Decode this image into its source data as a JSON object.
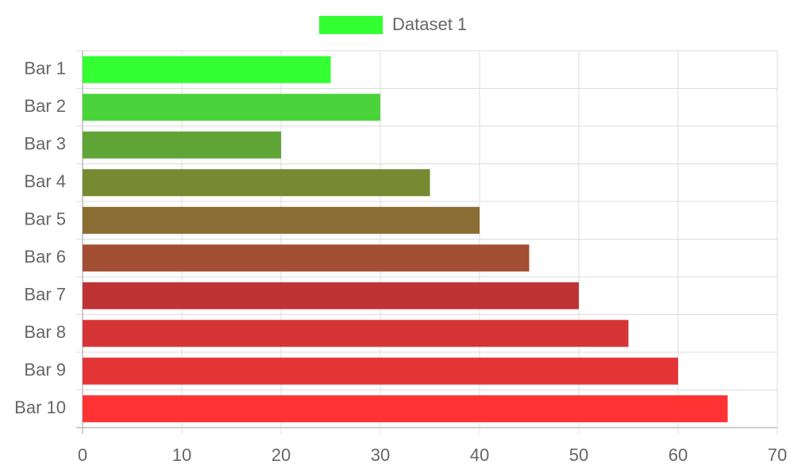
{
  "chart_data": {
    "type": "bar",
    "orientation": "horizontal",
    "categories": [
      "Bar 1",
      "Bar 2",
      "Bar 3",
      "Bar 4",
      "Bar 5",
      "Bar 6",
      "Bar 7",
      "Bar 8",
      "Bar 9",
      "Bar 10"
    ],
    "series": [
      {
        "name": "Dataset 1",
        "color": "#33ff33",
        "colors": [
          "#33ff33",
          "#4ad33a",
          "#5fa437",
          "#778a32",
          "#8a6d33",
          "#a34f33",
          "#bf3336",
          "#d63536",
          "#e33535",
          "#ff3333"
        ],
        "values": [
          25,
          30,
          20,
          35,
          40,
          45,
          50,
          55,
          60,
          65
        ]
      }
    ],
    "xlim": [
      0,
      70
    ],
    "xticks": [
      0,
      10,
      20,
      30,
      40,
      50,
      60,
      70
    ],
    "grid": true,
    "legend": "top"
  }
}
